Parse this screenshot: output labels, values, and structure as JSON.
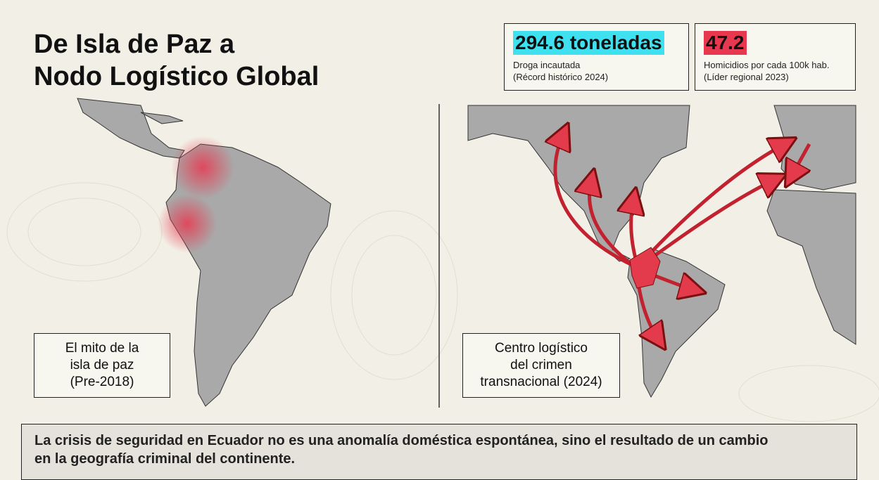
{
  "title": [
    "De Isla de Paz a",
    "Nodo Logístico Global"
  ],
  "stats": [
    {
      "value": "294.6 toneladas",
      "label": [
        "Droga incautada",
        "(Récord histórico 2024)"
      ]
    },
    {
      "value": "47.2",
      "label": [
        "Homicidios por cada 100k hab.",
        "(Líder regional 2023)"
      ]
    }
  ],
  "maps": [
    {
      "caption": [
        "El mito de la",
        "isla de paz",
        "(Pre-2018)"
      ]
    },
    {
      "caption": [
        "Centro logístico",
        "del crimen",
        "transnacional (2024)"
      ]
    }
  ],
  "footer": [
    "La crisis de seguridad en Ecuador no es una anomalía doméstica espontánea, sino el resultado de un cambio",
    "en la geografía criminal del continente."
  ]
}
